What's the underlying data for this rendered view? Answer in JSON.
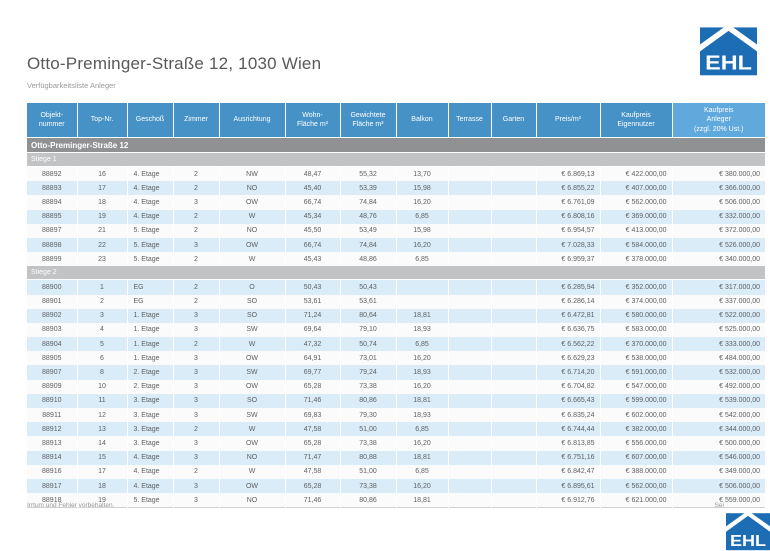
{
  "header": {
    "title": "Otto-Preminger-Straße 12, 1030 Wien",
    "subtitle": "Verfügbarkeitsliste Anleger"
  },
  "logo": {
    "text": "EHL"
  },
  "table": {
    "columns": [
      "Objekt-\nnummer",
      "Top-Nr.",
      "Geschoß",
      "Zimmer",
      "Ausrichtung",
      "Wohn-\nFläche m²",
      "Gewichtete\nFläche m²",
      "Balkon",
      "Terrasse",
      "Garten",
      "Preis/m²",
      "Kaufpreis\nEigennutzer",
      "Kaufpreis\nAnleger\n(zzgl. 20% Ust.)"
    ],
    "group_title": "Otto-Preminger-Straße 12",
    "sections": [
      {
        "label": "Stiege 1",
        "rows": [
          [
            "88892",
            "16",
            "4. Etage",
            "2",
            "NW",
            "48,47",
            "55,32",
            "13,70",
            "",
            "",
            "€ 6.869,13",
            "€ 422.000,00",
            "€ 380.000,00"
          ],
          [
            "88893",
            "17",
            "4. Etage",
            "2",
            "NO",
            "45,40",
            "53,39",
            "15,98",
            "",
            "",
            "€ 6.855,22",
            "€ 407.000,00",
            "€ 366.000,00"
          ],
          [
            "88894",
            "18",
            "4. Etage",
            "3",
            "OW",
            "66,74",
            "74,84",
            "16,20",
            "",
            "",
            "€ 6.761,09",
            "€ 562.000,00",
            "€ 506.000,00"
          ],
          [
            "88895",
            "19",
            "4. Etage",
            "2",
            "W",
            "45,34",
            "48,76",
            "6,85",
            "",
            "",
            "€ 6.808,16",
            "€ 369.000,00",
            "€ 332.000,00"
          ],
          [
            "88897",
            "21",
            "5. Etage",
            "2",
            "NO",
            "45,50",
            "53,49",
            "15,98",
            "",
            "",
            "€ 6.954,57",
            "€ 413.000,00",
            "€ 372.000,00"
          ],
          [
            "88898",
            "22",
            "5. Etage",
            "3",
            "OW",
            "66,74",
            "74,84",
            "16,20",
            "",
            "",
            "€ 7.028,33",
            "€ 584.000,00",
            "€ 526.000,00"
          ],
          [
            "88899",
            "23",
            "5. Etage",
            "2",
            "W",
            "45,43",
            "48,86",
            "6,85",
            "",
            "",
            "€ 6.959,37",
            "€ 378.000,00",
            "€ 340.000,00"
          ]
        ]
      },
      {
        "label": "Stiege 2",
        "rows": [
          [
            "88900",
            "1",
            "EG",
            "2",
            "O",
            "50,43",
            "50,43",
            "",
            "",
            "",
            "€ 6.285,94",
            "€ 352.000,00",
            "€ 317.000,00"
          ],
          [
            "88901",
            "2",
            "EG",
            "2",
            "SO",
            "53,61",
            "53,61",
            "",
            "",
            "",
            "€ 6.286,14",
            "€ 374.000,00",
            "€ 337.000,00"
          ],
          [
            "88902",
            "3",
            "1. Etage",
            "3",
            "SO",
            "71,24",
            "80,64",
            "18,81",
            "",
            "",
            "€ 6.472,81",
            "€ 580.000,00",
            "€ 522.000,00"
          ],
          [
            "88903",
            "4",
            "1. Etage",
            "3",
            "SW",
            "69,64",
            "79,10",
            "18,93",
            "",
            "",
            "€ 6.636,75",
            "€ 583.000,00",
            "€ 525.000,00"
          ],
          [
            "88904",
            "5",
            "1. Etage",
            "2",
            "W",
            "47,32",
            "50,74",
            "6,85",
            "",
            "",
            "€ 6.562,22",
            "€ 370.000,00",
            "€ 333.000,00"
          ],
          [
            "88905",
            "6",
            "1. Etage",
            "3",
            "OW",
            "64,91",
            "73,01",
            "16,20",
            "",
            "",
            "€ 6.629,23",
            "€ 538.000,00",
            "€ 484.000,00"
          ],
          [
            "88907",
            "8",
            "2. Etage",
            "3",
            "SW",
            "69,77",
            "79,24",
            "18,93",
            "",
            "",
            "€ 6.714,20",
            "€ 591.000,00",
            "€ 532.000,00"
          ],
          [
            "88909",
            "10",
            "2. Etage",
            "3",
            "OW",
            "65,28",
            "73,38",
            "16,20",
            "",
            "",
            "€ 6.704,82",
            "€ 547.000,00",
            "€ 492.000,00"
          ],
          [
            "88910",
            "11",
            "3. Etage",
            "3",
            "SO",
            "71,46",
            "80,86",
            "18,81",
            "",
            "",
            "€ 6.665,43",
            "€ 599.000,00",
            "€ 539.000,00"
          ],
          [
            "88911",
            "12",
            "3. Etage",
            "3",
            "SW",
            "69,83",
            "79,30",
            "18,93",
            "",
            "",
            "€ 6.835,24",
            "€ 602.000,00",
            "€ 542.000,00"
          ],
          [
            "88912",
            "13",
            "3. Etage",
            "2",
            "W",
            "47,58",
            "51,00",
            "6,85",
            "",
            "",
            "€ 6.744,44",
            "€ 382.000,00",
            "€ 344.000,00"
          ],
          [
            "88913",
            "14",
            "3. Etage",
            "3",
            "OW",
            "65,28",
            "73,38",
            "16,20",
            "",
            "",
            "€ 6.813,85",
            "€ 556.000,00",
            "€ 500.000,00"
          ],
          [
            "88914",
            "15",
            "4. Etage",
            "3",
            "NO",
            "71,47",
            "80,88",
            "18,81",
            "",
            "",
            "€ 6.751,16",
            "€ 607.000,00",
            "€ 546.000,00"
          ],
          [
            "88916",
            "17",
            "4. Etage",
            "2",
            "W",
            "47,58",
            "51,00",
            "6,85",
            "",
            "",
            "€ 6.842,47",
            "€ 388.000,00",
            "€ 349.000,00"
          ],
          [
            "88917",
            "18",
            "4. Etage",
            "3",
            "OW",
            "65,28",
            "73,38",
            "16,20",
            "",
            "",
            "€ 6.895,61",
            "€ 562.000,00",
            "€ 506.000,00"
          ],
          [
            "88918",
            "19",
            "5. Etage",
            "3",
            "NO",
            "71,46",
            "80,86",
            "18,81",
            "",
            "",
            "€ 6.912,76",
            "€ 621.000,00",
            "€ 559.000,00"
          ]
        ]
      }
    ]
  },
  "footer": {
    "left": "Irrtum und Fehler vorbehalten.",
    "right": "Sei"
  },
  "colors": {
    "header_blue": "#4692c7",
    "header_blue_light": "#5fa9dc",
    "row_blue": "#d9ecf8",
    "row_white": "#fbfbfb",
    "building_bar_gray": "#909193",
    "stiege_bar_gray": "#c2c3c5",
    "logo_blue": "#1d6db4"
  }
}
